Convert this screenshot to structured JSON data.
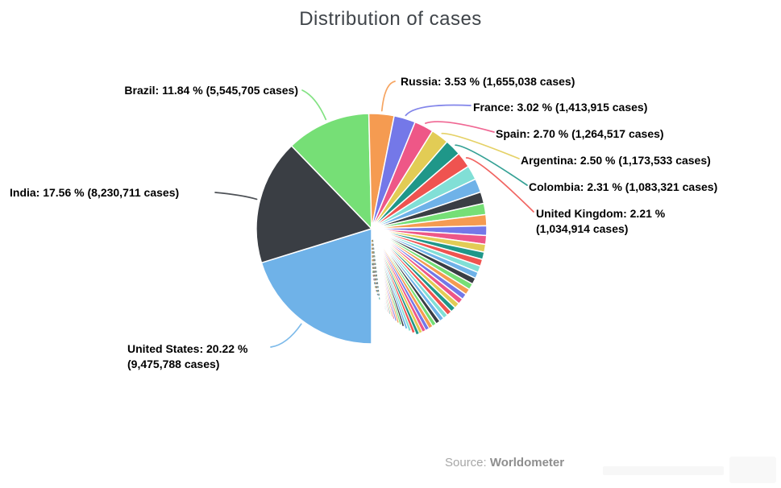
{
  "title": "Distribution of cases",
  "source": {
    "prefix": "Source:",
    "name": "Worldometer"
  },
  "labels": {
    "brazil": "Brazil: 11.84 % (5,545,705 cases)",
    "india": "India: 17.56 % (8,230,711 cases)",
    "united_states_line1": "United States: 20.22 %",
    "united_states_line2": "(9,475,788 cases)",
    "russia": "Russia: 3.53 % (1,655,038 cases)",
    "france": "France: 3.02 % (1,413,915 cases)",
    "spain": "Spain: 2.70 % (1,264,517 cases)",
    "argentina": "Argentina: 2.50 % (1,173,533 cases)",
    "colombia": "Colombia: 2.31 % (1,083,321 cases)",
    "united_kingdom_line1": "United Kingdom: 2.21 %",
    "united_kingdom_line2": "(1,034,914 cases)"
  },
  "colors": {
    "background": "#FFFFFF",
    "title": "#3F4449",
    "label": "#000000",
    "source": "#9A9A9A",
    "slice_border": "#FFFFFF"
  },
  "chart_data": {
    "type": "pie",
    "title": "Distribution of cases",
    "source": "Worldometer",
    "start_angle_deg": 180,
    "direction": "clockwise",
    "order": "descending by value",
    "legend": "off",
    "labeled_slices": [
      {
        "key": "united_states",
        "name": "United States",
        "pct": 20.22,
        "cases": 9475788,
        "cases_text": "9,475,788",
        "color": "#6FB2E8"
      },
      {
        "key": "india",
        "name": "India",
        "pct": 17.56,
        "cases": 8230711,
        "cases_text": "8,230,711",
        "color": "#3A3E44"
      },
      {
        "key": "brazil",
        "name": "Brazil",
        "pct": 11.84,
        "cases": 5545705,
        "cases_text": "5,545,705",
        "color": "#76DF76"
      },
      {
        "key": "russia",
        "name": "Russia",
        "pct": 3.53,
        "cases": 1655038,
        "cases_text": "1,655,038",
        "color": "#F59B51"
      },
      {
        "key": "france",
        "name": "France",
        "pct": 3.02,
        "cases": 1413915,
        "cases_text": "1,413,915",
        "color": "#7478E8"
      },
      {
        "key": "spain",
        "name": "Spain",
        "pct": 2.7,
        "cases": 1264517,
        "cases_text": "1,264,517",
        "color": "#EE5787"
      },
      {
        "key": "argentina",
        "name": "Argentina",
        "pct": 2.5,
        "cases": 1173533,
        "cases_text": "1,173,533",
        "color": "#E2CC55"
      },
      {
        "key": "colombia",
        "name": "Colombia",
        "pct": 2.31,
        "cases": 1083321,
        "cases_text": "1,083,321",
        "color": "#1F9789"
      },
      {
        "key": "uk",
        "name": "United Kingdom",
        "pct": 2.21,
        "cases": 1034914,
        "cases_text": "1,034,914",
        "color": "#EF5350"
      }
    ],
    "unlabeled_slices_pct_estimated": [
      2.01,
      1.93,
      1.63,
      1.58,
      1.55,
      1.36,
      1.23,
      1.1,
      1.03,
      0.97,
      0.93,
      0.89,
      0.88,
      0.87,
      0.83,
      0.82,
      0.8,
      0.77,
      0.74,
      0.72,
      0.68,
      0.66,
      0.63,
      0.6,
      0.57,
      0.54,
      0.51,
      0.48,
      0.45,
      0.42,
      0.39,
      0.36,
      0.33,
      0.31,
      0.29,
      0.27,
      0.25,
      0.23,
      0.21,
      0.2,
      0.19,
      0.18,
      0.17,
      0.16,
      0.15,
      0.14,
      0.13,
      0.12,
      0.11,
      0.1,
      0.095,
      0.09,
      0.085,
      0.08,
      0.075,
      0.07,
      0.065,
      0.06,
      0.055,
      0.05,
      0.047,
      0.044,
      0.041,
      0.038,
      0.035,
      0.032,
      0.029,
      0.026,
      0.024,
      0.022,
      0.02,
      0.018,
      0.016,
      0.014,
      0.012,
      0.011,
      0.01,
      0.009,
      0.008,
      0.007,
      0.006,
      0.005,
      0.004,
      0.003,
      0.002
    ],
    "palette": [
      "#6FB2E8",
      "#3A3E44",
      "#76DF76",
      "#F59B51",
      "#7478E8",
      "#EE5787",
      "#E2CC55",
      "#1F9789",
      "#EF5350",
      "#81DFD6"
    ]
  }
}
